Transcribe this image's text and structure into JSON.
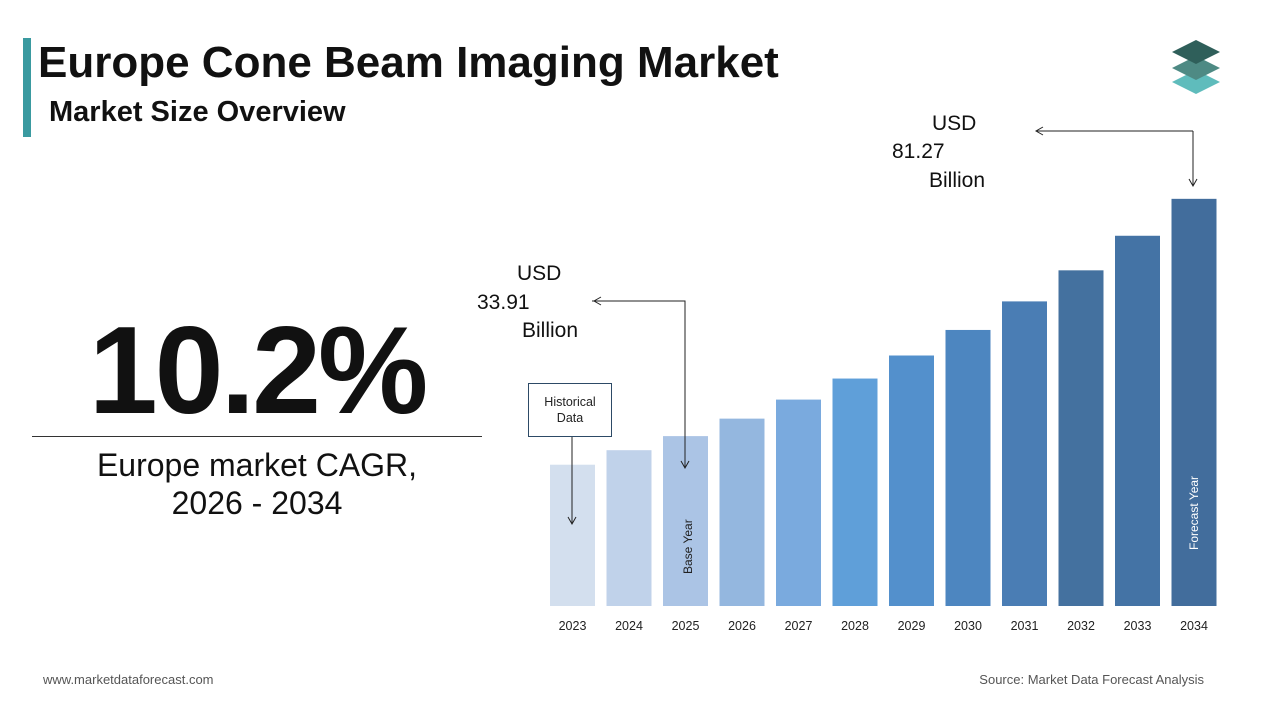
{
  "header": {
    "title": "Europe Cone Beam Imaging Market",
    "subtitle": "Market Size Overview"
  },
  "highlight": {
    "cagr": "10.2%",
    "label_line1": "Europe market CAGR,",
    "label_line2": "2026 - 2034"
  },
  "annotations": {
    "start_value": {
      "line1": "USD",
      "line2": "33.91",
      "line3": "Billion"
    },
    "end_value": {
      "line1": "USD",
      "line2": "81.27",
      "line3": "Billion"
    },
    "historical_box": {
      "line1": "Historical",
      "line2": "Data"
    },
    "base_year_label": "Base Year",
    "forecast_year_label": "Forecast Year"
  },
  "footer": {
    "website": "www.marketdataforecast.com",
    "source": "Source: Market Data Forecast Analysis"
  },
  "colors": {
    "accent": "#3a9aa0",
    "logo_top": "#2f5f5a",
    "logo_mid": "#4e8a84",
    "logo_bottom": "#5fbcbc"
  },
  "chart_data": {
    "type": "bar",
    "categories": [
      "2023",
      "2024",
      "2025",
      "2026",
      "2027",
      "2028",
      "2029",
      "2030",
      "2031",
      "2032",
      "2033",
      "2034"
    ],
    "values": [
      28.2,
      31.1,
      33.91,
      37.4,
      41.2,
      45.4,
      50.0,
      55.1,
      60.8,
      67.0,
      73.9,
      81.27
    ],
    "colors": [
      "#d3dfee",
      "#c0d2ea",
      "#abc4e5",
      "#94b7df",
      "#7aaade",
      "#5f9fd9",
      "#5390cc",
      "#4d86c0",
      "#4a7db4",
      "#44719f",
      "#4473a5",
      "#426d9c"
    ],
    "ylim": [
      0,
      100
    ]
  }
}
